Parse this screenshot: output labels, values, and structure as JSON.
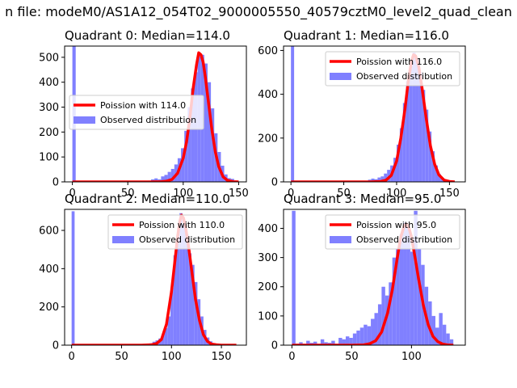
{
  "suptitle": "n file: modeM0/AS1A12_054T02_9000005550_40579cztM0_level2_quad_clean",
  "colors": {
    "poisson": "#ff0000",
    "observed": "#8080ff",
    "axis": "#000000"
  },
  "chart_data": [
    {
      "type": "bar",
      "title": "Quadrant 0: Median=114.0",
      "xlim": [
        -7,
        157
      ],
      "ylim": [
        0,
        545
      ],
      "xticks": [
        0,
        50,
        100,
        150
      ],
      "yticks": [
        0,
        100,
        200,
        300,
        400,
        500
      ],
      "legend_position": "center-left",
      "series": [
        {
          "name": "Poission with 114.0",
          "kind": "line",
          "x": [
            0,
            55,
            70,
            80,
            85,
            90,
            95,
            100,
            103,
            106,
            109,
            112,
            114,
            116,
            118,
            120,
            123,
            126,
            129,
            132,
            136,
            140,
            145,
            150
          ],
          "y": [
            0,
            0,
            0,
            1,
            3,
            10,
            35,
            95,
            160,
            255,
            375,
            470,
            518,
            510,
            480,
            420,
            310,
            205,
            120,
            62,
            20,
            6,
            1,
            0
          ]
        },
        {
          "name": "Observed distribution",
          "kind": "hist",
          "bin_width": 3,
          "bins_start": [
            0,
            68,
            71,
            74,
            77,
            80,
            83,
            86,
            89,
            92,
            95,
            98,
            101,
            104,
            107,
            110,
            113,
            116,
            119,
            122,
            125,
            128,
            131,
            134,
            137,
            140,
            143,
            146
          ],
          "counts": [
            545,
            5,
            10,
            14,
            10,
            22,
            28,
            40,
            52,
            70,
            95,
            135,
            205,
            300,
            375,
            440,
            505,
            510,
            475,
            400,
            295,
            195,
            120,
            65,
            30,
            15,
            12,
            5
          ]
        }
      ]
    },
    {
      "type": "bar",
      "title": "Quadrant 1: Median=116.0",
      "xlim": [
        -7,
        165
      ],
      "ylim": [
        0,
        620
      ],
      "xticks": [
        0,
        50,
        100,
        150
      ],
      "yticks": [
        0,
        200,
        400,
        600
      ],
      "legend_position": "top-right",
      "series": [
        {
          "name": "Poission with 116.0",
          "kind": "line",
          "x": [
            0,
            60,
            75,
            85,
            90,
            95,
            100,
            104,
            108,
            111,
            114,
            116,
            118,
            121,
            124,
            128,
            132,
            136,
            140,
            145,
            150,
            155
          ],
          "y": [
            0,
            0,
            0,
            2,
            8,
            30,
            95,
            200,
            335,
            460,
            550,
            580,
            575,
            525,
            430,
            290,
            165,
            80,
            32,
            8,
            2,
            0
          ]
        },
        {
          "name": "Observed distribution",
          "kind": "hist",
          "bin_width": 3,
          "bins_start": [
            0,
            70,
            73,
            76,
            79,
            82,
            85,
            88,
            91,
            94,
            97,
            100,
            103,
            106,
            109,
            112,
            115,
            118,
            121,
            124,
            127,
            130,
            133,
            136,
            139,
            142,
            145,
            148
          ],
          "counts": [
            620,
            5,
            10,
            15,
            12,
            20,
            25,
            38,
            55,
            75,
            110,
            170,
            245,
            360,
            460,
            530,
            590,
            560,
            500,
            420,
            330,
            230,
            140,
            75,
            35,
            18,
            10,
            5
          ]
        }
      ]
    },
    {
      "type": "bar",
      "title": "Quadrant 2: Median=110.0",
      "xlim": [
        -7,
        175
      ],
      "ylim": [
        0,
        710
      ],
      "xticks": [
        0,
        50,
        100,
        150
      ],
      "yticks": [
        0,
        200,
        400,
        600
      ],
      "legend_position": "top-right",
      "series": [
        {
          "name": "Poission with 110.0",
          "kind": "line",
          "x": [
            0,
            55,
            70,
            80,
            85,
            90,
            95,
            100,
            103,
            106,
            108,
            110,
            112,
            114,
            117,
            120,
            124,
            128,
            132,
            136,
            140,
            145,
            150,
            165
          ],
          "y": [
            0,
            0,
            0,
            2,
            8,
            30,
            110,
            280,
            420,
            560,
            640,
            680,
            665,
            620,
            520,
            400,
            240,
            130,
            55,
            20,
            6,
            2,
            0,
            0
          ]
        },
        {
          "name": "Observed distribution",
          "kind": "hist",
          "bin_width": 3,
          "bins_start": [
            0,
            75,
            78,
            81,
            84,
            87,
            90,
            93,
            96,
            99,
            102,
            105,
            108,
            111,
            114,
            117,
            120,
            123,
            126,
            129,
            132,
            135,
            138,
            141,
            144
          ],
          "counts": [
            700,
            5,
            10,
            18,
            25,
            35,
            55,
            90,
            150,
            300,
            470,
            570,
            690,
            635,
            580,
            480,
            420,
            330,
            240,
            150,
            80,
            40,
            20,
            10,
            5
          ]
        }
      ]
    },
    {
      "type": "bar",
      "title": "Quadrant 3: Median=95.0",
      "xlim": [
        -7,
        145
      ],
      "ylim": [
        0,
        465
      ],
      "xticks": [
        0,
        50,
        100
      ],
      "yticks": [
        0,
        100,
        200,
        300,
        400
      ],
      "legend_position": "top-right",
      "series": [
        {
          "name": "Poission with 95.0",
          "kind": "line",
          "x": [
            0,
            50,
            60,
            65,
            70,
            75,
            80,
            84,
            88,
            91,
            94,
            96,
            98,
            100,
            103,
            106,
            110,
            114,
            118,
            122,
            126,
            130,
            135
          ],
          "y": [
            0,
            0,
            1,
            5,
            15,
            45,
            110,
            190,
            295,
            370,
            410,
            415,
            400,
            370,
            300,
            225,
            135,
            70,
            30,
            12,
            4,
            1,
            0
          ]
        },
        {
          "name": "Observed distribution",
          "kind": "hist",
          "bin_width": 3,
          "bins_start": [
            0,
            3,
            6,
            9,
            12,
            15,
            18,
            21,
            24,
            27,
            30,
            33,
            36,
            39,
            42,
            45,
            48,
            51,
            54,
            57,
            60,
            63,
            66,
            69,
            72,
            75,
            78,
            81,
            84,
            87,
            90,
            93,
            96,
            99,
            102,
            105,
            108,
            111,
            114,
            117,
            120,
            123,
            126,
            129,
            132
          ],
          "counts": [
            460,
            5,
            10,
            5,
            15,
            8,
            12,
            5,
            20,
            10,
            8,
            15,
            5,
            25,
            20,
            30,
            25,
            40,
            50,
            60,
            70,
            65,
            90,
            110,
            140,
            200,
            170,
            215,
            300,
            330,
            380,
            420,
            400,
            320,
            460,
            330,
            275,
            200,
            150,
            100,
            60,
            110,
            70,
            40,
            20
          ]
        }
      ]
    }
  ]
}
